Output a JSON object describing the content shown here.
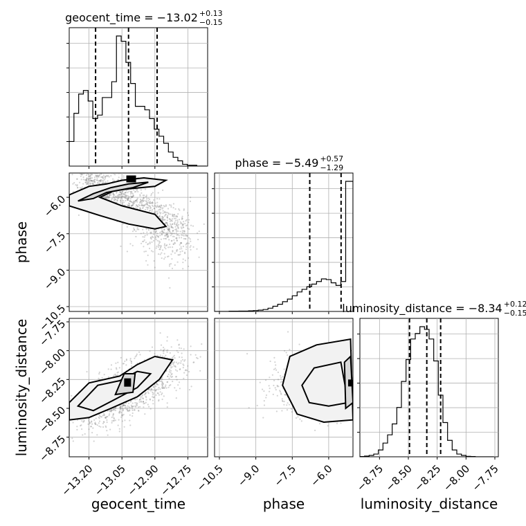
{
  "chart_data": {
    "type": "corner",
    "parameters": [
      "geocent_time",
      "phase",
      "luminosity_distance"
    ],
    "axis_labels": {
      "x": [
        "geocent_time",
        "phase",
        "luminosity_distance"
      ],
      "y": [
        "phase",
        "luminosity_distance"
      ]
    },
    "ranges": {
      "geocent_time": [
        -13.29,
        -12.66
      ],
      "phase": [
        -10.7,
        -5.0
      ],
      "luminosity_distance": [
        -8.92,
        -7.72
      ]
    },
    "ticks": {
      "geocent_time": {
        "values": [
          -13.2,
          -13.05,
          -12.9,
          -12.75
        ],
        "labels": [
          "−13.20",
          "−13.05",
          "−12.90",
          "−12.75"
        ]
      },
      "phase": {
        "values": [
          -10.5,
          -9.0,
          -7.5,
          -6.0
        ],
        "labels": [
          "−10.5",
          "−9.0",
          "−7.5",
          "−6.0"
        ]
      },
      "luminosity_distance": {
        "values": [
          -8.75,
          -8.5,
          -8.25,
          -8.0,
          -7.75
        ],
        "labels": [
          "−8.75",
          "−8.50",
          "−8.25",
          "−8.00",
          "−7.75"
        ]
      }
    },
    "titles": [
      {
        "param": "geocent_time",
        "prefix": "geocent_time = −13.02",
        "plus": "+0.13",
        "minus": "−0.15"
      },
      {
        "param": "phase",
        "prefix": "phase = −5.49",
        "plus": "+0.57",
        "minus": "−1.29"
      },
      {
        "param": "luminosity_distance",
        "prefix": "luminosity_distance = −8.34",
        "plus": "+0.12",
        "minus": "−0.15"
      }
    ],
    "quantiles": {
      "geocent_time": [
        -13.17,
        -13.02,
        -12.89
      ],
      "phase": [
        -6.78,
        -5.49,
        -4.92
      ],
      "luminosity_distance": [
        -8.49,
        -8.34,
        -8.22
      ]
    },
    "histograms": {
      "geocent_time": {
        "edges": [
          -13.29,
          -13.2685,
          -13.247,
          -13.2255,
          -13.204,
          -13.1825,
          -13.161,
          -13.1395,
          -13.118,
          -13.0965,
          -13.075,
          -13.0535,
          -13.032,
          -13.0105,
          -12.989,
          -12.9675,
          -12.946,
          -12.9245,
          -12.903,
          -12.8815,
          -12.86,
          -12.8385,
          -12.817,
          -12.7955,
          -12.774,
          -12.7525,
          -12.731,
          -12.7095,
          -12.688,
          -12.6665
        ],
        "counts": [
          0.14,
          0.3,
          0.41,
          0.43,
          0.37,
          0.27,
          0.29,
          0.39,
          0.39,
          0.48,
          0.74,
          0.71,
          0.59,
          0.47,
          0.34,
          0.34,
          0.32,
          0.27,
          0.21,
          0.17,
          0.13,
          0.08,
          0.05,
          0.03,
          0.01,
          0.005,
          0.005,
          0.0,
          0.0
        ]
      },
      "phase": {
        "edges": [
          -10.7,
          -10.5,
          -10.3,
          -10.1,
          -9.9,
          -9.7,
          -9.5,
          -9.3,
          -9.1,
          -8.9,
          -8.7,
          -8.5,
          -8.3,
          -8.1,
          -7.9,
          -7.7,
          -7.5,
          -7.3,
          -7.1,
          -6.9,
          -6.7,
          -6.5,
          -6.3,
          -6.1,
          -5.9,
          -5.7,
          -5.5,
          -5.3,
          -5.1,
          -5.0
        ],
        "counts": [
          0,
          0,
          0,
          0.002,
          0.002,
          0.003,
          0.003,
          0.005,
          0.007,
          0.01,
          0.015,
          0.025,
          0.04,
          0.055,
          0.075,
          0.095,
          0.12,
          0.15,
          0.17,
          0.19,
          0.21,
          0.23,
          0.25,
          0.245,
          0.22,
          0.2,
          0.23,
          1.0,
          1.0
        ]
      },
      "luminosity_distance": {
        "edges": [
          -8.92,
          -8.88,
          -8.84,
          -8.8,
          -8.76,
          -8.72,
          -8.68,
          -8.64,
          -8.6,
          -8.56,
          -8.52,
          -8.48,
          -8.44,
          -8.4,
          -8.36,
          -8.32,
          -8.28,
          -8.24,
          -8.2,
          -8.16,
          -8.12,
          -8.08,
          -8.04,
          -8.0,
          -7.96,
          -7.92,
          -7.88,
          -7.84,
          -7.8,
          -7.76
        ],
        "counts": [
          0.002,
          0.005,
          0.01,
          0.02,
          0.05,
          0.1,
          0.16,
          0.24,
          0.36,
          0.55,
          0.71,
          0.86,
          0.9,
          0.95,
          0.93,
          0.86,
          0.7,
          0.45,
          0.25,
          0.12,
          0.05,
          0.02,
          0.01,
          0.003,
          0.002,
          0,
          0,
          0,
          0
        ]
      }
    },
    "grid": true
  }
}
